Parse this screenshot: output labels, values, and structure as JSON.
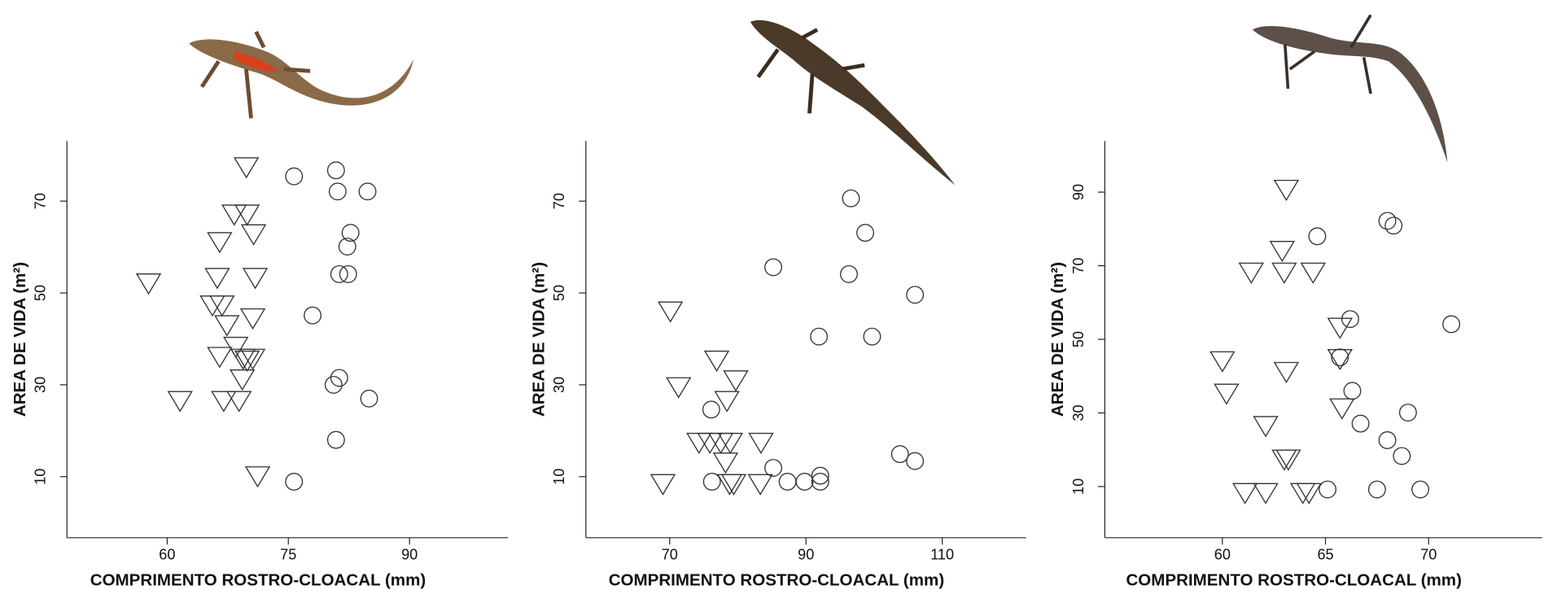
{
  "chart_data": [
    {
      "type": "scatter",
      "xlabel": "COMPRIMENTO ROSTRO-CLOACAL (mm)",
      "ylabel": "AREA DE VIDA (m²)",
      "xlim": [
        47.6,
        102.2
      ],
      "ylim": [
        -3.3,
        83.1
      ],
      "xticks": [
        60,
        75,
        90
      ],
      "yticks": [
        10,
        30,
        50,
        70
      ],
      "series": [
        {
          "marker": "triangle-down",
          "color": "#333333",
          "x": [
            57.7,
            69.8,
            68.3,
            69.9,
            66.5,
            70.7,
            66.2,
            70.9,
            65.6,
            66.8,
            67.4,
            70.6,
            68.5,
            66.5,
            69.4,
            70.6,
            69.9,
            69.3,
            61.6,
            67.0,
            68.9,
            71.2
          ],
          "values": [
            52.2,
            77.5,
            67.2,
            67.2,
            61.2,
            62.9,
            53.4,
            53.4,
            47.4,
            47.4,
            43.1,
            44.6,
            38.4,
            36.2,
            35.8,
            35.8,
            35.4,
            31.3,
            26.6,
            26.6,
            26.6,
            10.2
          ]
        },
        {
          "marker": "circle",
          "color": "#333333",
          "x": [
            75.7,
            80.9,
            81.1,
            84.8,
            82.7,
            82.3,
            81.3,
            82.4,
            78.0,
            81.3,
            80.6,
            85.0,
            80.9,
            75.7
          ],
          "values": [
            75.4,
            76.7,
            72.1,
            72.1,
            63.1,
            60.1,
            54.1,
            54.1,
            45.1,
            31.5,
            30.0,
            27.0,
            18.0,
            8.9
          ]
        }
      ]
    },
    {
      "type": "scatter",
      "xlabel": "COMPRIMENTO ROSTRO-CLOACAL (mm)",
      "ylabel": "AREA DE VIDA (m²)",
      "xlim": [
        57.7,
        122.3
      ],
      "ylim": [
        -3.3,
        83.1
      ],
      "xticks": [
        70,
        90,
        110
      ],
      "yticks": [
        10,
        30,
        50,
        70
      ],
      "series": [
        {
          "marker": "triangle-down",
          "color": "#333333",
          "x": [
            70.1,
            71.3,
            76.9,
            79.7,
            78.4,
            74.3,
            75.9,
            77.5,
            78.9,
            83.4,
            78.2,
            69.0,
            78.8,
            79.4,
            83.3
          ],
          "values": [
            46.1,
            29.6,
            35.4,
            31.1,
            26.6,
            17.5,
            17.5,
            17.5,
            17.5,
            17.5,
            13.2,
            8.5,
            8.5,
            8.5,
            8.5
          ]
        },
        {
          "marker": "circle",
          "color": "#333333",
          "x": [
            96.6,
            98.7,
            85.2,
            96.3,
            106.0,
            91.9,
            99.7,
            76.1,
            85.2,
            76.2,
            87.3,
            89.8,
            92.1,
            92.1,
            103.8,
            106.0
          ],
          "values": [
            70.6,
            63.1,
            55.6,
            54.1,
            49.6,
            40.5,
            40.5,
            24.6,
            11.9,
            8.9,
            8.9,
            8.9,
            10.2,
            8.9,
            14.9,
            13.4
          ]
        }
      ]
    },
    {
      "type": "scatter",
      "xlabel": "COMPRIMENTO ROSTRO-CLOACAL (mm)",
      "ylabel": "AREA DE VIDA (m²)",
      "xlim": [
        54.3,
        75.5
      ],
      "ylim": [
        -3.9,
        103.9
      ],
      "xticks": [
        60,
        65,
        70
      ],
      "yticks": [
        10,
        30,
        50,
        70,
        90
      ],
      "series": [
        {
          "marker": "triangle-down",
          "color": "#333333",
          "x": [
            63.1,
            62.9,
            61.4,
            63.0,
            64.4,
            60.0,
            60.2,
            63.1,
            65.7,
            65.7,
            65.8,
            62.1,
            63.0,
            63.2,
            61.1,
            62.1,
            63.9,
            64.2
          ],
          "values": [
            90.8,
            74.2,
            68.3,
            68.3,
            68.3,
            44.2,
            35.4,
            41.3,
            44.8,
            53.3,
            31.4,
            26.6,
            17.5,
            17.5,
            8.4,
            8.4,
            8.4,
            8.4
          ]
        },
        {
          "marker": "circle",
          "color": "#333333",
          "x": [
            64.6,
            68.0,
            68.3,
            66.2,
            71.1,
            65.7,
            66.3,
            66.7,
            68.0,
            69.0,
            68.7,
            65.1,
            67.5,
            69.6
          ],
          "values": [
            78.0,
            82.2,
            80.9,
            55.5,
            54.1,
            45.1,
            36.0,
            27.1,
            22.6,
            30.1,
            18.3,
            9.2,
            9.2,
            9.2
          ]
        }
      ]
    }
  ]
}
